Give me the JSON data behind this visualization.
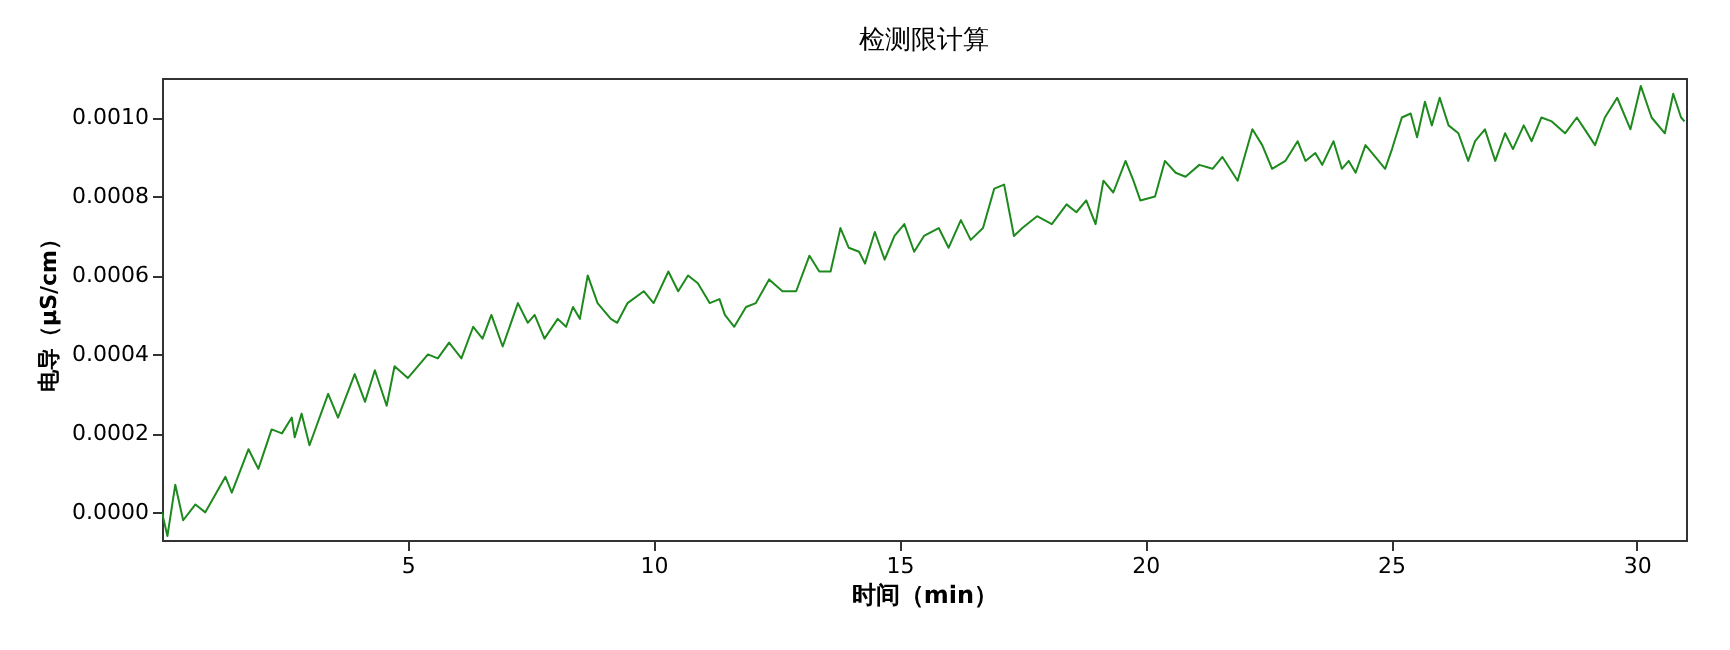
{
  "chart_data": {
    "type": "line",
    "title": "检测限计算",
    "xlabel": "时间（min）",
    "ylabel": "电导（μS/cm）",
    "xlim": [
      0,
      31
    ],
    "xticks": [
      5,
      10,
      15,
      20,
      25,
      30
    ],
    "ylim": [
      -7e-05,
      0.0011
    ],
    "yticks": [
      {
        "value": 0,
        "label": "0.0000"
      },
      {
        "value": 0.0002,
        "label": "0.0002"
      },
      {
        "value": 0.0004,
        "label": "0.0004"
      },
      {
        "value": 0.0006,
        "label": "0.0006"
      },
      {
        "value": 0.0008,
        "label": "0.0008"
      },
      {
        "value": 0.001,
        "label": "0.0010"
      }
    ],
    "grid": false,
    "series": [
      {
        "color": "#1e8a1e",
        "x": [
          0.0,
          0.11,
          0.27,
          0.43,
          0.68,
          0.88,
          1.29,
          1.42,
          1.76,
          1.96,
          2.23,
          2.44,
          2.64,
          2.7,
          2.84,
          3.0,
          3.38,
          3.58,
          3.92,
          4.13,
          4.33,
          4.57,
          4.73,
          5.0,
          5.41,
          5.61,
          5.84,
          6.09,
          6.33,
          6.52,
          6.7,
          6.93,
          7.24,
          7.44,
          7.58,
          7.78,
          8.05,
          8.22,
          8.36,
          8.5,
          8.66,
          8.86,
          9.13,
          9.26,
          9.47,
          9.8,
          10.0,
          10.3,
          10.5,
          10.7,
          10.9,
          11.14,
          11.34,
          11.45,
          11.64,
          11.88,
          12.08,
          12.35,
          12.62,
          12.9,
          13.17,
          13.37,
          13.6,
          13.8,
          13.97,
          14.18,
          14.3,
          14.5,
          14.7,
          14.9,
          15.1,
          15.3,
          15.5,
          15.8,
          16.0,
          16.25,
          16.45,
          16.7,
          16.93,
          17.13,
          17.33,
          17.5,
          17.8,
          18.1,
          18.4,
          18.6,
          18.8,
          18.99,
          19.15,
          19.35,
          19.6,
          19.76,
          19.9,
          20.2,
          20.4,
          20.62,
          20.82,
          21.1,
          21.37,
          21.57,
          21.88,
          22.18,
          22.38,
          22.58,
          22.85,
          23.1,
          23.26,
          23.46,
          23.6,
          23.83,
          24.0,
          24.14,
          24.28,
          24.48,
          24.68,
          24.88,
          25.02,
          25.22,
          25.4,
          25.53,
          25.69,
          25.83,
          25.99,
          26.17,
          26.37,
          26.57,
          26.71,
          26.91,
          27.12,
          27.32,
          27.48,
          27.7,
          27.86,
          28.06,
          28.27,
          28.54,
          28.78,
          28.94,
          29.15,
          29.35,
          29.6,
          29.87,
          30.08,
          30.3,
          30.57,
          30.74,
          30.9,
          30.97
        ],
        "values": [
          0.0,
          -6e-05,
          7e-05,
          -2e-05,
          2e-05,
          0.0,
          9e-05,
          5e-05,
          0.00016,
          0.00011,
          0.00021,
          0.0002,
          0.00024,
          0.00019,
          0.00025,
          0.00017,
          0.0003,
          0.00024,
          0.00035,
          0.00028,
          0.00036,
          0.00027,
          0.00037,
          0.00034,
          0.0004,
          0.00039,
          0.00043,
          0.00039,
          0.00047,
          0.00044,
          0.0005,
          0.00042,
          0.00053,
          0.00048,
          0.0005,
          0.00044,
          0.00049,
          0.00047,
          0.00052,
          0.00049,
          0.0006,
          0.00053,
          0.00049,
          0.00048,
          0.00053,
          0.00056,
          0.00053,
          0.00061,
          0.00056,
          0.0006,
          0.00058,
          0.00053,
          0.00054,
          0.0005,
          0.00047,
          0.00052,
          0.00053,
          0.00059,
          0.00056,
          0.00056,
          0.00065,
          0.00061,
          0.00061,
          0.00072,
          0.00067,
          0.00066,
          0.00063,
          0.00071,
          0.00064,
          0.0007,
          0.00073,
          0.00066,
          0.0007,
          0.00072,
          0.00067,
          0.00074,
          0.00069,
          0.00072,
          0.00082,
          0.00083,
          0.0007,
          0.00072,
          0.00075,
          0.00073,
          0.00078,
          0.00076,
          0.00079,
          0.00073,
          0.00084,
          0.00081,
          0.00089,
          0.00084,
          0.00079,
          0.0008,
          0.00089,
          0.00086,
          0.00085,
          0.00088,
          0.00087,
          0.0009,
          0.00084,
          0.00097,
          0.00093,
          0.00087,
          0.00089,
          0.00094,
          0.00089,
          0.00091,
          0.00088,
          0.00094,
          0.00087,
          0.00089,
          0.00086,
          0.00093,
          0.0009,
          0.00087,
          0.00092,
          0.001,
          0.00101,
          0.00095,
          0.00104,
          0.00098,
          0.00105,
          0.00098,
          0.00096,
          0.00089,
          0.00094,
          0.00097,
          0.00089,
          0.00096,
          0.00092,
          0.00098,
          0.00094,
          0.001,
          0.00099,
          0.00096,
          0.001,
          0.00097,
          0.00093,
          0.001,
          0.00105,
          0.00097,
          0.00108,
          0.001,
          0.00096,
          0.00106,
          0.001,
          0.00099
        ]
      }
    ]
  }
}
